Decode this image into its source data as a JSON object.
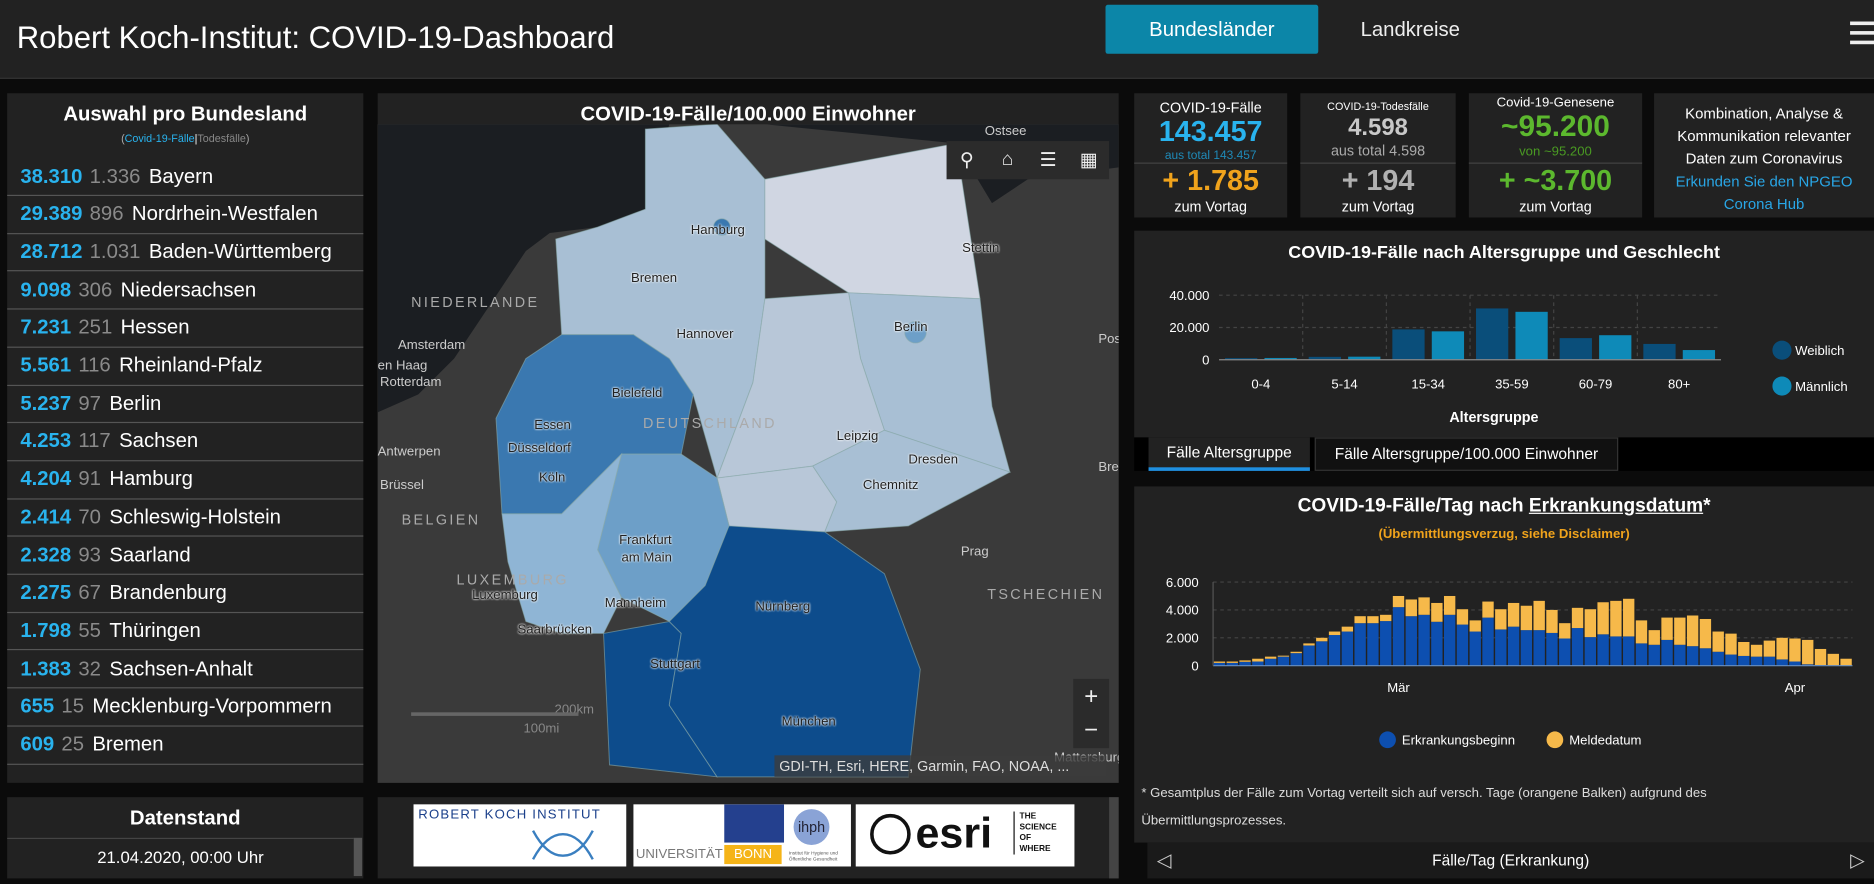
{
  "header": {
    "title": "Robert Koch-Institut: COVID-19-Dashboard",
    "tabs": [
      "Bundesländer",
      "Landkreise"
    ],
    "menu_icon": "hamburger-menu-icon"
  },
  "bundesland": {
    "title": "Auswahl pro Bundesland",
    "legend_cases": "Covid-19-Fälle",
    "legend_sep": "|",
    "legend_deaths": "Todesfälle",
    "open": "(",
    "close": ")",
    "rows": [
      {
        "cases": "38.310",
        "deaths": "1.336",
        "name": "Bayern"
      },
      {
        "cases": "29.389",
        "deaths": "896",
        "name": "Nordrhein-Westfalen"
      },
      {
        "cases": "28.712",
        "deaths": "1.031",
        "name": "Baden-Württemberg"
      },
      {
        "cases": "9.098",
        "deaths": "306",
        "name": "Niedersachsen"
      },
      {
        "cases": "7.231",
        "deaths": "251",
        "name": "Hessen"
      },
      {
        "cases": "5.561",
        "deaths": "116",
        "name": "Rheinland-Pfalz"
      },
      {
        "cases": "5.237",
        "deaths": "97",
        "name": "Berlin"
      },
      {
        "cases": "4.253",
        "deaths": "117",
        "name": "Sachsen"
      },
      {
        "cases": "4.204",
        "deaths": "91",
        "name": "Hamburg"
      },
      {
        "cases": "2.414",
        "deaths": "70",
        "name": "Schleswig-Holstein"
      },
      {
        "cases": "2.328",
        "deaths": "93",
        "name": "Saarland"
      },
      {
        "cases": "2.275",
        "deaths": "67",
        "name": "Brandenburg"
      },
      {
        "cases": "1.798",
        "deaths": "55",
        "name": "Thüringen"
      },
      {
        "cases": "1.383",
        "deaths": "32",
        "name": "Sachsen-Anhalt"
      },
      {
        "cases": "655",
        "deaths": "15",
        "name": "Mecklenburg-Vorpommern"
      },
      {
        "cases": "609",
        "deaths": "25",
        "name": "Bremen"
      }
    ]
  },
  "datenstand": {
    "title": "Datenstand",
    "value": "21.04.2020, 00:00 Uhr"
  },
  "map": {
    "title": "COVID-19-Fälle/100.000 Einwohner",
    "labels": [
      "Ostsee",
      "Hamburg",
      "Stettin",
      "Bremen",
      "NIEDERLANDE",
      "Berlin",
      "Hannover",
      "Amsterdam",
      "Pos",
      "en Haag",
      "Rotterdam",
      "Bielefeld",
      "DEUTSCHLAND",
      "Essen",
      "Leipzig",
      "Antwerpen",
      "Düsseldorf",
      "Dresden",
      "Bre",
      "Chemnitz",
      "Brüssel",
      "Köln",
      "BELGIEN",
      "Frankfurt",
      "am Main",
      "Prag",
      "LUXEMBURG",
      "Luxemburg",
      "TSCHECHIEN",
      "Mannheim",
      "Nürnberg",
      "Saarbrücken",
      "Stuttgart",
      "München",
      "Mattersburg"
    ],
    "scale_km": "200km",
    "scale_mi": "100mi",
    "attribution": "GDI-TH, Esri, HERE, Garmin, FAO, NOAA, ...",
    "zoom_in": "+",
    "zoom_out": "−",
    "tools": [
      "search-icon",
      "home-icon",
      "legend-list-icon",
      "basemap-gallery-icon"
    ],
    "colors": {
      "low": "#d0d6e2",
      "light": "#a8bfd4",
      "mid": "#6d9fc8",
      "midhigh": "#3a78b0",
      "high": "#0d4c8c"
    }
  },
  "logos": {
    "rki": "ROBERT KOCH INSTITUT",
    "bonn_a": "UNIVERSITÄT",
    "bonn_b": "BONN",
    "ihph": "ihph",
    "ihph_sub": "Institut für Hygiene und Öffentliche Gesundheit",
    "esri": "esri",
    "esri_tag": [
      "THE",
      "SCIENCE",
      "OF",
      "WHERE"
    ]
  },
  "kpis": {
    "cases": {
      "label": "COVID-19-Fälle",
      "value": "143.457",
      "sub": "aus total 143.457",
      "plus": "+ 1.785",
      "vortag": "zum Vortag"
    },
    "deaths": {
      "label": "COVID-19-Todesfälle",
      "value": "4.598",
      "sub": "aus total 4.598",
      "plus": "+ 194",
      "vortag": "zum Vortag"
    },
    "recovered": {
      "label": "Covid-19-Genesene",
      "value": "~95.200",
      "sub": "von ~95.200",
      "plus": "+ ~3.700",
      "vortag": "zum Vortag"
    },
    "info": {
      "line1": "Kombination, Analyse &",
      "line2": "Kommunikation relevanter",
      "line3": "Daten zum Coronavirus",
      "link1": "Erkunden Sie den NPGEO",
      "link2": "Corona Hub"
    },
    "colors": {
      "cases": "#29b3ee",
      "plus_cases": "#f0a31c",
      "recovered": "#5cb82e",
      "muted": "#b0b0b0"
    }
  },
  "age_chart": {
    "tabs": [
      "Fälle Altersgruppe",
      "Fälle Altersgruppe/100.000 Einwohner"
    ]
  },
  "daily_chart": {
    "footer": "Fälle/Tag (Erkrankung)"
  },
  "chart_data": [
    {
      "type": "bar",
      "title": "COVID-19-Fälle nach Altersgruppe und Geschlecht",
      "xlabel": "Altersgruppe",
      "ylabel": "",
      "categories": [
        "0-4",
        "5-14",
        "15-34",
        "35-59",
        "60-79",
        "80+"
      ],
      "ylim": [
        0,
        40000
      ],
      "yticks": [
        "0",
        "20.000",
        "40.000"
      ],
      "grid": true,
      "legend": "right",
      "series": [
        {
          "name": "Weiblich",
          "color": "#0a4e7a",
          "values": [
            1000,
            1800,
            18800,
            31800,
            13400,
            9800
          ]
        },
        {
          "name": "Männlich",
          "color": "#0e8ab8",
          "values": [
            1100,
            1900,
            17600,
            29700,
            15200,
            6000
          ]
        }
      ]
    },
    {
      "type": "bar",
      "stacked": true,
      "title_a": "COVID-19-Fälle/Tag nach ",
      "title_b": "Erkrankungsdatum",
      "title_c": "*",
      "subtitle": "(Übermittlungsverzug, siehe Disclaimer)",
      "ylim": [
        0,
        6000
      ],
      "yticks": [
        "0",
        "2.000",
        "4.000",
        "6.000"
      ],
      "xticks": [
        {
          "label": "Mär",
          "index": 14
        },
        {
          "label": "Apr",
          "index": 45
        }
      ],
      "grid": true,
      "legend": "bottom",
      "footnote_1": "* Gesamtplus der Fälle zum Vortag verteilt sich auf versch. Tage (orangene Balken) aufgrund des",
      "footnote_2": "Übermittlungsprozesses.",
      "series": [
        {
          "name": "Erkrankungsbeginn",
          "color": "#0d4fb0",
          "values": [
            200,
            200,
            280,
            300,
            500,
            650,
            900,
            1450,
            1750,
            2200,
            2450,
            3050,
            3050,
            3200,
            4200,
            3550,
            3650,
            3150,
            3650,
            2950,
            2450,
            3450,
            2600,
            2800,
            2550,
            2550,
            2350,
            1950,
            2700,
            2050,
            2250,
            2100,
            2100,
            1600,
            1500,
            1850,
            1500,
            1400,
            1250,
            1000,
            800,
            700,
            650,
            650,
            450,
            300,
            100,
            50,
            30,
            20
          ]
        },
        {
          "name": "Meldedatum",
          "color": "#f6b94a",
          "values": [
            100,
            100,
            100,
            200,
            150,
            70,
            100,
            150,
            250,
            250,
            350,
            500,
            500,
            450,
            800,
            1200,
            1250,
            1350,
            1350,
            1100,
            800,
            1150,
            1450,
            1700,
            1750,
            2100,
            1650,
            1100,
            1450,
            2000,
            2300,
            2550,
            2700,
            1650,
            1050,
            1600,
            1950,
            2200,
            2100,
            1450,
            1500,
            1000,
            850,
            1150,
            1550,
            1650,
            1750,
            1150,
            820,
            480
          ]
        }
      ]
    }
  ]
}
